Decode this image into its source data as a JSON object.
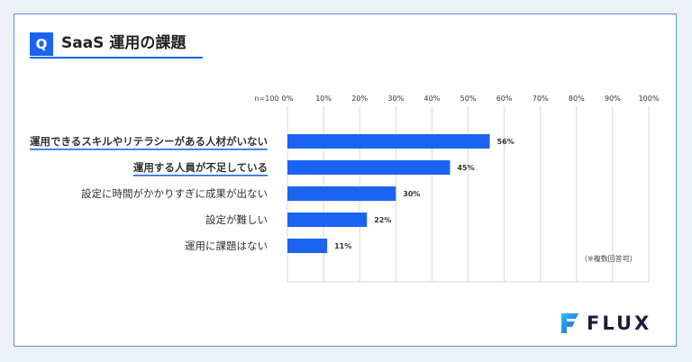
{
  "header": {
    "badge": "Q",
    "title": "SaaS 運用の課題"
  },
  "chart_data": {
    "type": "bar",
    "orientation": "horizontal",
    "n_label": "n=100",
    "categories": [
      "運用できるスキルやリテラシーがある人材がいない",
      "運用する人員が不足している",
      "設定に時間がかかりすぎに成果が出ない",
      "設定が難しい",
      "運用に課題はない"
    ],
    "values": [
      56,
      45,
      30,
      22,
      11
    ],
    "value_labels": [
      "56%",
      "45%",
      "30%",
      "22%",
      "11%"
    ],
    "highlighted": [
      true,
      true,
      false,
      false,
      false
    ],
    "xlim": [
      0,
      100
    ],
    "xticks": [
      "0%",
      "10%",
      "20%",
      "30%",
      "40%",
      "50%",
      "60%",
      "70%",
      "80%",
      "90%",
      "100%"
    ],
    "grid": true,
    "bar_color": "#1b64f2",
    "highlight_color": "#1b64f2",
    "grid_color": "#d9d9d9"
  },
  "note": "（※複数回答可）",
  "brand": {
    "name": "FLUX",
    "mark_icon": "flux-logo-icon"
  }
}
